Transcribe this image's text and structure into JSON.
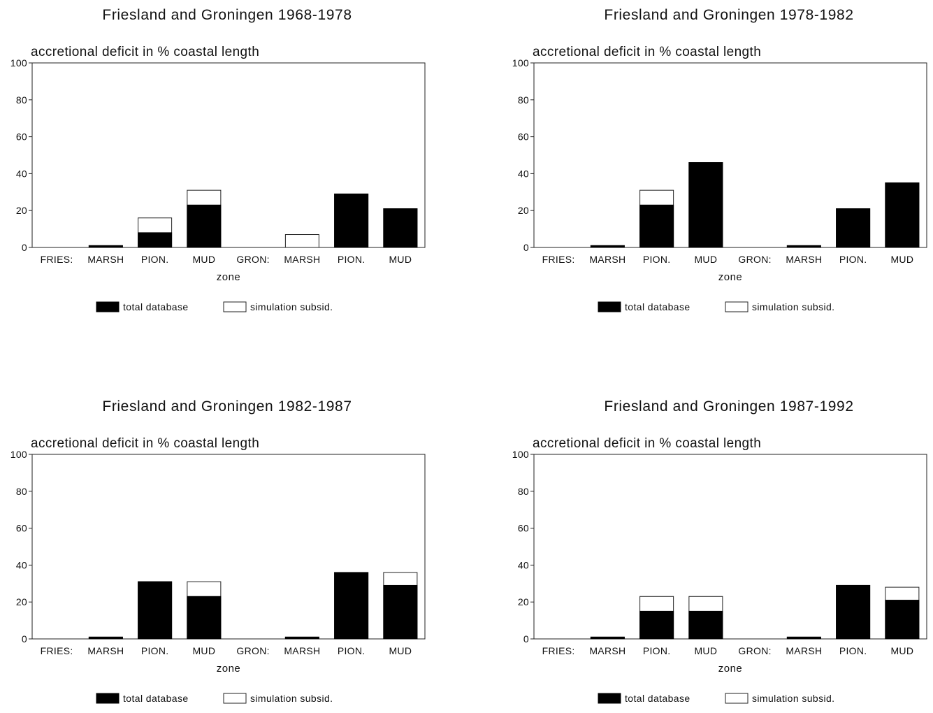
{
  "chart_data": [
    {
      "type": "bar",
      "title": "Friesland and Groningen 1968-1978",
      "ylabel": "accretional deficit in % coastal length",
      "xlabel": "zone",
      "categories": [
        "FRIES:",
        "MARSH",
        "PION.",
        "MUD",
        "GRON:",
        "MARSH",
        "PION.",
        "MUD"
      ],
      "ylim": [
        0,
        100
      ],
      "yticks": [
        0,
        20,
        40,
        60,
        80,
        100
      ],
      "grid": false,
      "legend_position": "bottom",
      "series": [
        {
          "name": "total database",
          "color": "#000000",
          "values": [
            0,
            1,
            8,
            23,
            0,
            0,
            29,
            21
          ]
        },
        {
          "name": "simulation subsid.",
          "color": "#ffffff",
          "values": [
            0,
            1,
            16,
            31,
            0,
            7,
            29,
            21
          ]
        }
      ]
    },
    {
      "type": "bar",
      "title": "Friesland and Groningen 1978-1982",
      "ylabel": "accretional deficit in % coastal length",
      "xlabel": "zone",
      "categories": [
        "FRIES:",
        "MARSH",
        "PION.",
        "MUD",
        "GRON:",
        "MARSH",
        "PION.",
        "MUD"
      ],
      "ylim": [
        0,
        100
      ],
      "yticks": [
        0,
        20,
        40,
        60,
        80,
        100
      ],
      "grid": false,
      "legend_position": "bottom",
      "series": [
        {
          "name": "total database",
          "color": "#000000",
          "values": [
            0,
            1,
            23,
            46,
            0,
            1,
            21,
            35
          ]
        },
        {
          "name": "simulation subsid.",
          "color": "#ffffff",
          "values": [
            0,
            1,
            31,
            46,
            0,
            1,
            21,
            35
          ]
        }
      ]
    },
    {
      "type": "bar",
      "title": "Friesland and Groningen 1982-1987",
      "ylabel": "accretional deficit in % coastal length",
      "xlabel": "zone",
      "categories": [
        "FRIES:",
        "MARSH",
        "PION.",
        "MUD",
        "GRON:",
        "MARSH",
        "PION.",
        "MUD"
      ],
      "ylim": [
        0,
        100
      ],
      "yticks": [
        0,
        20,
        40,
        60,
        80,
        100
      ],
      "grid": false,
      "legend_position": "bottom",
      "series": [
        {
          "name": "total database",
          "color": "#000000",
          "values": [
            0,
            1,
            31,
            23,
            0,
            1,
            36,
            29
          ]
        },
        {
          "name": "simulation subsid.",
          "color": "#ffffff",
          "values": [
            0,
            1,
            31,
            31,
            0,
            1,
            36,
            36
          ]
        }
      ]
    },
    {
      "type": "bar",
      "title": "Friesland and Groningen 1987-1992",
      "ylabel": "accretional deficit in % coastal length",
      "xlabel": "zone",
      "categories": [
        "FRIES:",
        "MARSH",
        "PION.",
        "MUD",
        "GRON:",
        "MARSH",
        "PION.",
        "MUD"
      ],
      "ylim": [
        0,
        100
      ],
      "yticks": [
        0,
        20,
        40,
        60,
        80,
        100
      ],
      "grid": false,
      "legend_position": "bottom",
      "series": [
        {
          "name": "total database",
          "color": "#000000",
          "values": [
            0,
            1,
            15,
            15,
            0,
            1,
            29,
            21
          ]
        },
        {
          "name": "simulation subsid.",
          "color": "#ffffff",
          "values": [
            0,
            1,
            23,
            23,
            0,
            1,
            29,
            28
          ]
        }
      ]
    }
  ]
}
